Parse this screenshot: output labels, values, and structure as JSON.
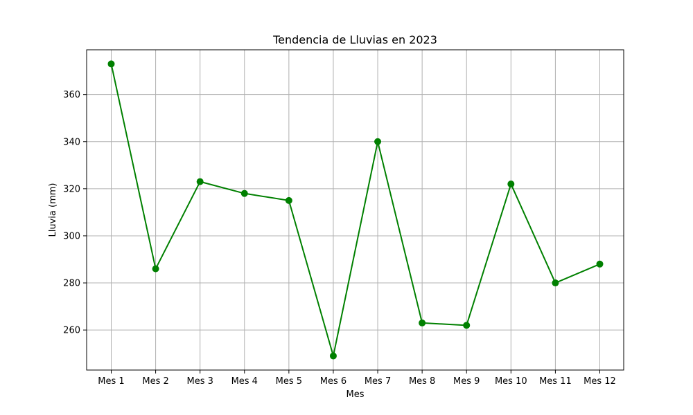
{
  "chart_data": {
    "type": "line",
    "title": "Tendencia de Lluvias en 2023",
    "xlabel": "Mes",
    "ylabel": "Lluvia (mm)",
    "categories": [
      "Mes 1",
      "Mes 2",
      "Mes 3",
      "Mes 4",
      "Mes 5",
      "Mes 6",
      "Mes 7",
      "Mes 8",
      "Mes 9",
      "Mes 10",
      "Mes 11",
      "Mes 12"
    ],
    "series": [
      {
        "values": [
          373,
          286,
          323,
          318,
          315,
          249,
          340,
          263,
          262,
          322,
          280,
          288
        ],
        "color": "#008000",
        "marker": "circle"
      }
    ],
    "ylim": [
      243,
      379
    ],
    "yticks": [
      260,
      280,
      300,
      320,
      340,
      360
    ],
    "grid": true
  }
}
